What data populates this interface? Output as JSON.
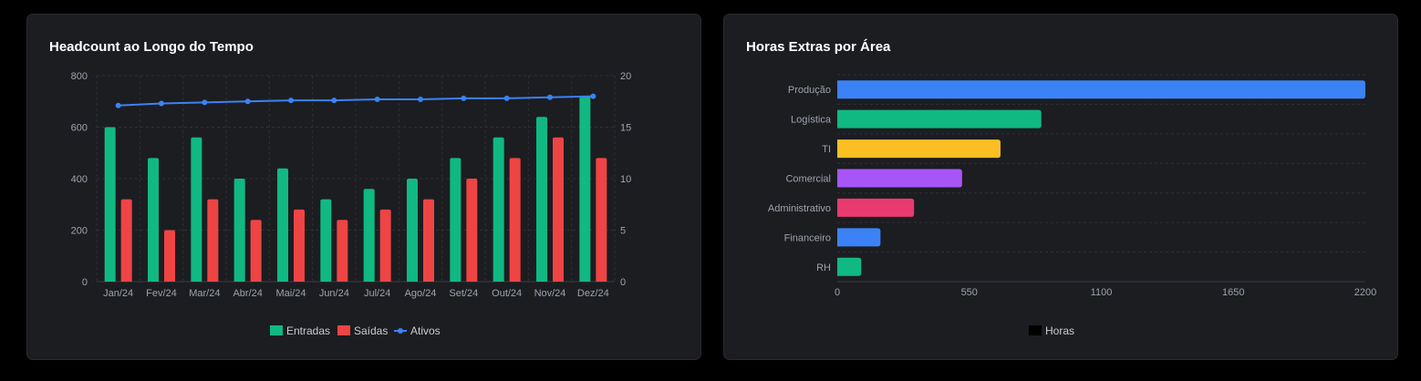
{
  "colors": {
    "entradas": "#10b981",
    "saidas": "#ef4444",
    "ativos": "#3b82f6",
    "grid": "#2e3036",
    "tick": "#9ca3af",
    "legend_text": "#c9ccd1"
  },
  "chart_data": [
    {
      "type": "bar",
      "title": "Headcount ao Longo do Tempo",
      "categories": [
        "Jan/24",
        "Fev/24",
        "Mar/24",
        "Abr/24",
        "Mai/24",
        "Jun/24",
        "Jul/24",
        "Ago/24",
        "Set/24",
        "Out/24",
        "Nov/24",
        "Dez/24"
      ],
      "series": [
        {
          "name": "Entradas",
          "kind": "bar",
          "axis": "left",
          "color": "#10b981",
          "values": [
            600,
            480,
            560,
            400,
            440,
            320,
            360,
            400,
            480,
            560,
            640,
            720
          ]
        },
        {
          "name": "Saídas",
          "kind": "bar",
          "axis": "left",
          "color": "#ef4444",
          "values": [
            320,
            200,
            320,
            240,
            280,
            240,
            280,
            320,
            400,
            480,
            560,
            480
          ]
        },
        {
          "name": "Ativos",
          "kind": "line",
          "axis": "right",
          "color": "#3b82f6",
          "values": [
            17.1,
            17.3,
            17.4,
            17.5,
            17.6,
            17.6,
            17.7,
            17.7,
            17.8,
            17.8,
            17.9,
            18.0
          ]
        }
      ],
      "y_left": {
        "ylim": [
          0,
          800
        ],
        "ticks": [
          "0",
          "200",
          "400",
          "600",
          "800"
        ]
      },
      "y_right": {
        "ylim": [
          0,
          20
        ],
        "ticks": [
          "0",
          "5",
          "10",
          "15",
          "20"
        ]
      },
      "grid": true,
      "legend": "bottom-center"
    },
    {
      "type": "bar",
      "orientation": "horizontal",
      "title": "Horas Extras por Área",
      "categories": [
        "Produção",
        "Logística",
        "TI",
        "Comercial",
        "Administrativo",
        "Financeiro",
        "RH"
      ],
      "values": [
        2200,
        850,
        680,
        520,
        320,
        180,
        100
      ],
      "colors": [
        "#3b82f6",
        "#10b981",
        "#fbbf24",
        "#a855f7",
        "#e83a6e",
        "#3b82f6",
        "#10b981"
      ],
      "xlim": [
        0,
        2200
      ],
      "x_ticks": [
        "0",
        "550",
        "1100",
        "1650",
        "2200"
      ],
      "series": [
        {
          "name": "Horas",
          "color": "#000000"
        }
      ],
      "grid": true,
      "legend": "bottom-center"
    }
  ]
}
